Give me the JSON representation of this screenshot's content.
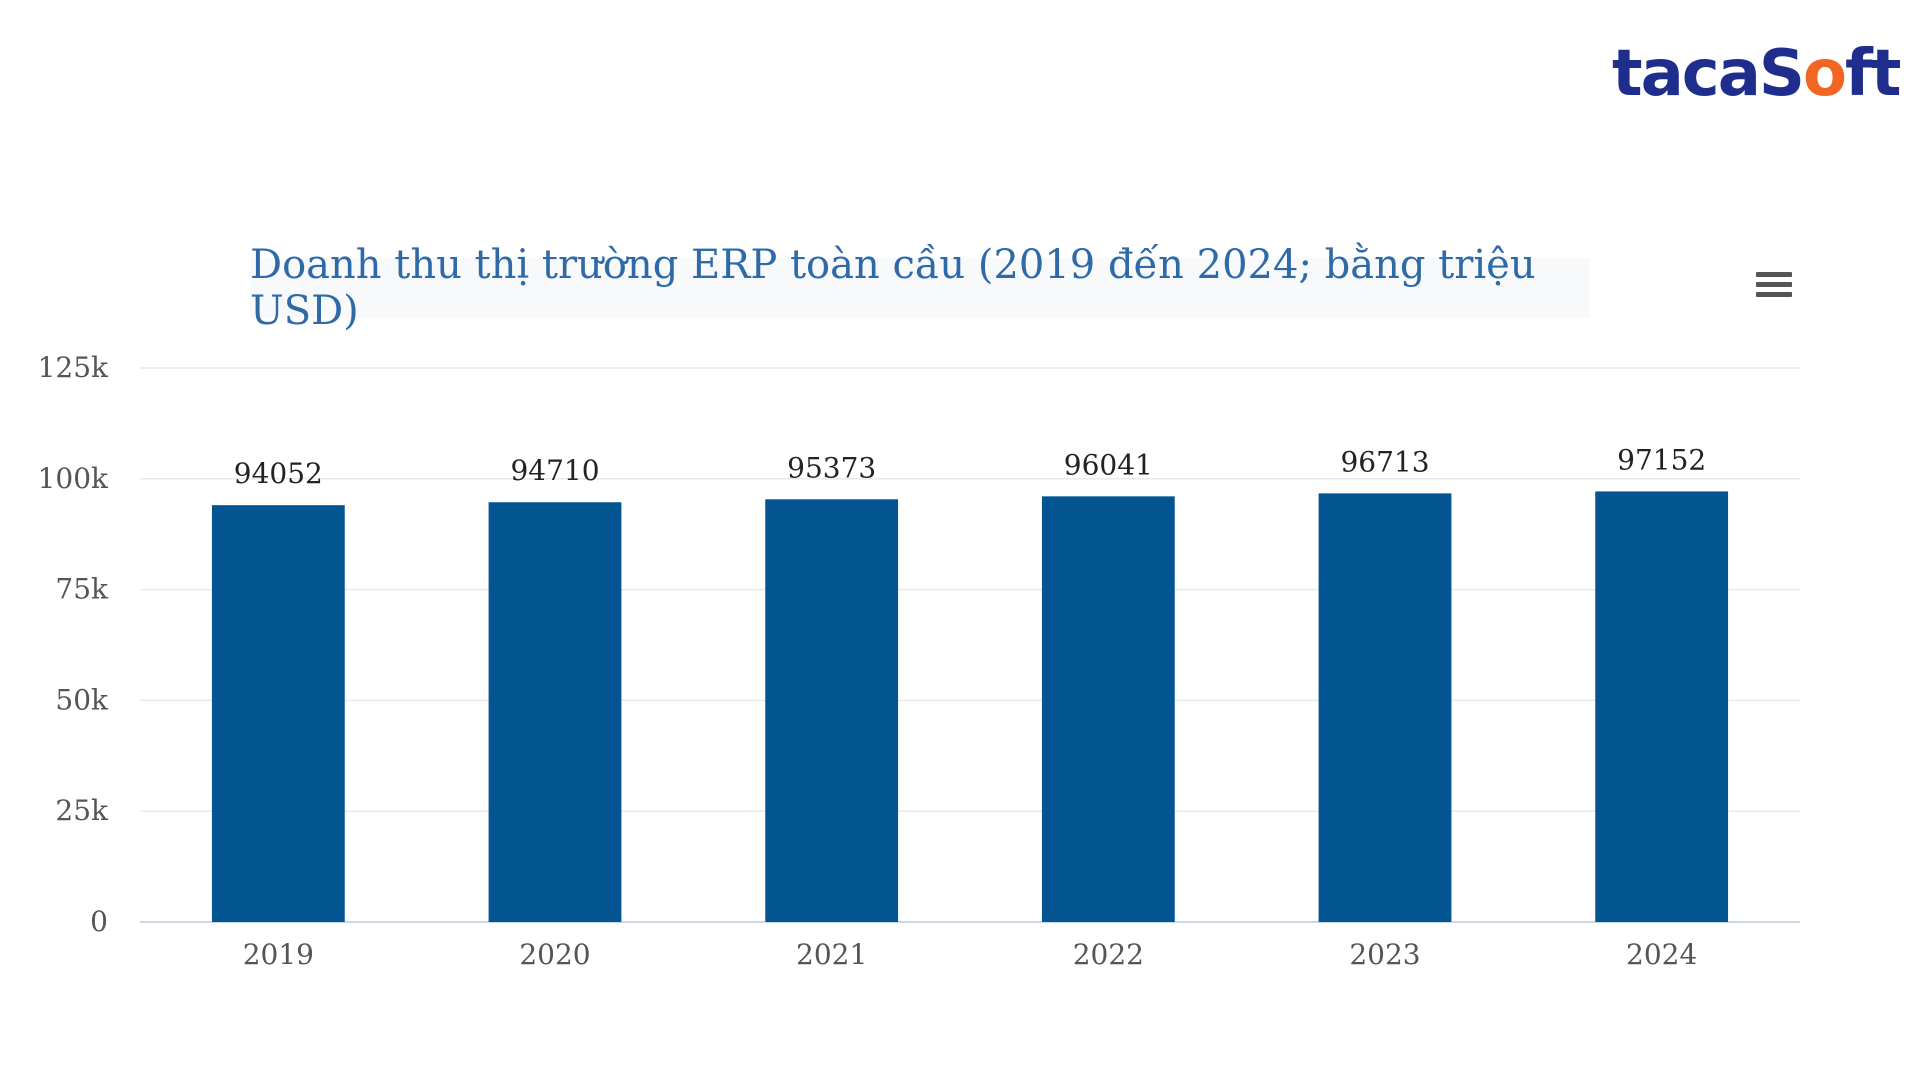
{
  "brand": {
    "logo_prefix": "tacaS",
    "logo_accent": "o",
    "logo_suffix": "ft"
  },
  "menu": {
    "icon": "hamburger-menu-icon"
  },
  "colors": {
    "bar": "#035592",
    "title": "#2e6aa8",
    "grid": "#e8eaef",
    "axis": "#ccd6eb",
    "logo": "#1f2d8c",
    "logo_accent": "#f26522"
  },
  "chart_data": {
    "type": "bar",
    "title": "Doanh thu thị trường ERP toàn cầu (2019 đến 2024; bằng triệu USD)",
    "categories": [
      "2019",
      "2020",
      "2021",
      "2022",
      "2023",
      "2024"
    ],
    "values": [
      94052,
      94710,
      95373,
      96041,
      96713,
      97152
    ],
    "data_labels": [
      "94052",
      "94710",
      "95373",
      "96041",
      "96713",
      "97152"
    ],
    "yticks": [
      0,
      25000,
      50000,
      75000,
      100000,
      125000
    ],
    "ytick_labels": [
      "0",
      "25k",
      "50k",
      "75k",
      "100k",
      "125k"
    ],
    "ylim": [
      0,
      125000
    ],
    "xlabel": "",
    "ylabel": "",
    "grid": true,
    "legend": false
  }
}
